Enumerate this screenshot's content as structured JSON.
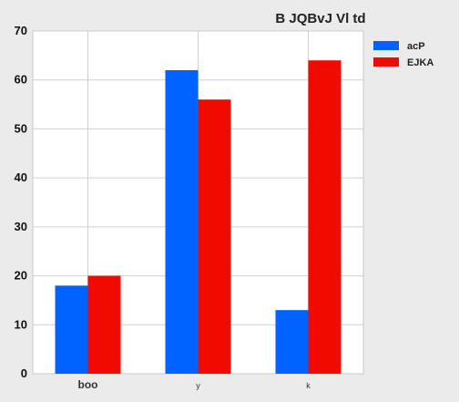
{
  "chart_data": {
    "type": "bar",
    "title": "B JQBvJ Vl td",
    "xlabel": "",
    "ylabel": "",
    "categories": [
      "boo",
      "y",
      "k"
    ],
    "series": [
      {
        "name": "acP",
        "values": [
          18,
          62,
          13
        ],
        "color": "#0062ff"
      },
      {
        "name": "EJKA",
        "values": [
          20,
          56,
          64
        ],
        "color": "#f00a00"
      }
    ],
    "ylim": [
      0,
      70
    ],
    "yticks": [
      0,
      10,
      20,
      30,
      40,
      50,
      60,
      70
    ],
    "grid": true,
    "legend": "top-right"
  }
}
